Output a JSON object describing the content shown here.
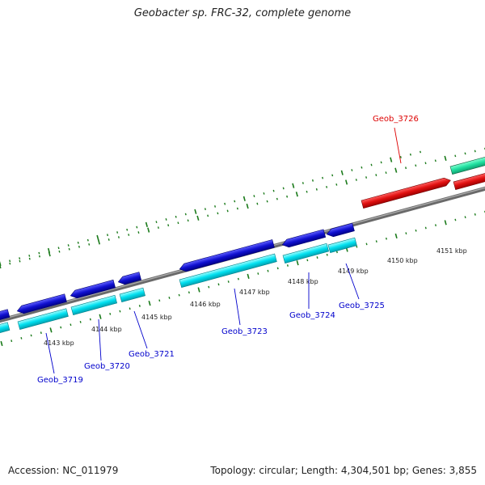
{
  "title": "Geobacter sp. FRC-32, complete genome",
  "footer": {
    "accession": "Accession: NC_011979",
    "stats": "Topology: circular; Length: 4,304,501 bp; Genes: 3,855"
  },
  "kbp_labels": [
    "4143 kbp",
    "4144 kbp",
    "4145 kbp",
    "4146 kbp",
    "4147 kbp",
    "4148 kbp",
    "4149 kbp",
    "4150 kbp",
    "4151 kbp"
  ],
  "gene_labels": [
    {
      "text": "Geob_3719",
      "color": "#0000cc"
    },
    {
      "text": "Geob_3720",
      "color": "#0000cc"
    },
    {
      "text": "Geob_3721",
      "color": "#0000cc"
    },
    {
      "text": "Geob_3723",
      "color": "#0000cc"
    },
    {
      "text": "Geob_3724",
      "color": "#0000cc"
    },
    {
      "text": "Geob_3725",
      "color": "#0000cc"
    },
    {
      "text": "Geob_3726",
      "color": "#dd0000"
    }
  ],
  "colors": {
    "cds_strand1": "#1010d0",
    "cds_strand1_light": "#00e0f0",
    "cds_highlight": "#e01010",
    "cds_highlight_light": "#20e0a0",
    "backbone": "#808080",
    "tick": "#1a7a1a"
  }
}
